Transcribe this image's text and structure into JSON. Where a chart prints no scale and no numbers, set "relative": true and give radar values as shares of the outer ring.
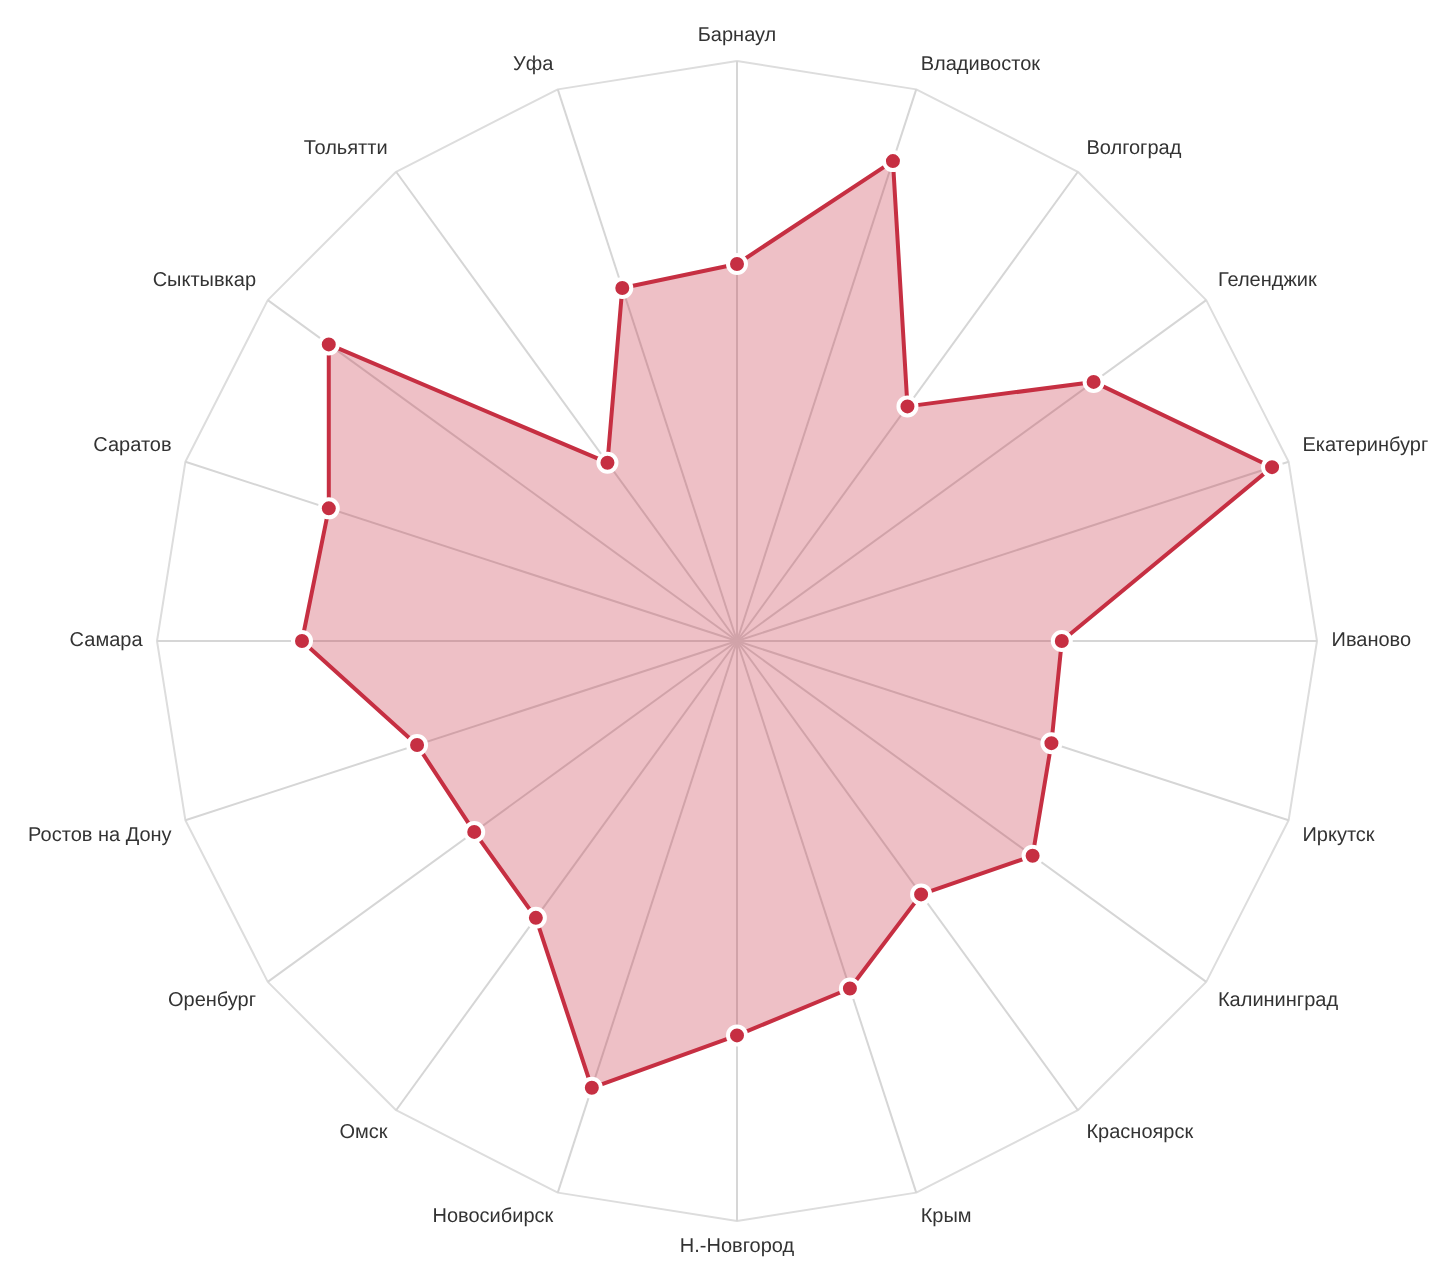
{
  "chart_data": {
    "type": "radar",
    "relative": true,
    "grid": true,
    "marker": "circle",
    "line_style": "solid",
    "categories": [
      "Барнаул",
      "Владивосток",
      "Волгоград",
      "Геленджик",
      "Екатеринбург",
      "Иваново",
      "Иркутск",
      "Калининград",
      "Красноярск",
      "Крым",
      "Н.-Новгород",
      "Новосибирск",
      "Омск",
      "Оренбург",
      "Ростов на Дону",
      "Самара",
      "Саратов",
      "Сыктывкар",
      "Тольятти",
      "Уфа"
    ],
    "series": [
      {
        "color": "#c62f42",
        "values": [
          0.65,
          0.87,
          0.5,
          0.76,
          0.97,
          0.56,
          0.57,
          0.63,
          0.54,
          0.63,
          0.68,
          0.81,
          0.59,
          0.56,
          0.58,
          0.75,
          0.74,
          0.87,
          0.38,
          0.64
        ]
      }
    ]
  }
}
